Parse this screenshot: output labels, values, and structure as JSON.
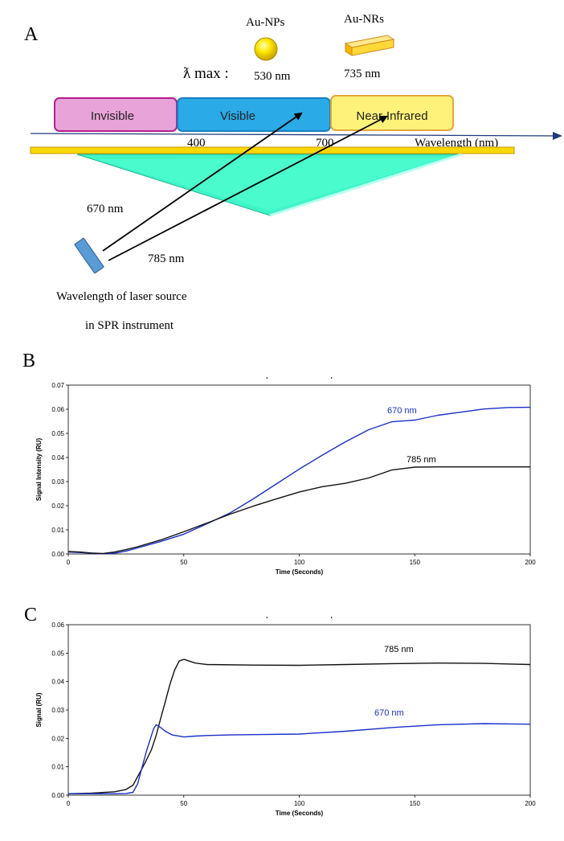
{
  "panel_a": {
    "letter": "A",
    "np_label": "Au-NPs",
    "nr_label": "Au-NRs",
    "lambda_label": "ƛ max :",
    "np_wavelength": "530 nm",
    "nr_wavelength": "735 nm",
    "region_invisible": "Invisible",
    "region_visible": "Visible",
    "region_nir": "Near-Infrared",
    "tick_400": "400",
    "tick_700": "700",
    "axis_label": "Wavelength (nm)",
    "laser_670": "670 nm",
    "laser_785": "785 nm",
    "source_line1": "Wavelength of laser source",
    "source_line2": "in SPR instrument",
    "colors": {
      "invisible_fill": "#e8a3d8",
      "invisible_border": "#b5208f",
      "visible_fill": "#2aaae6",
      "visible_border": "#1a7fc0",
      "nir_fill": "#fff27a",
      "nir_border": "#e6a53a",
      "prism": "#3ff5c8",
      "axis": "#1f3a78"
    }
  },
  "chart_data": [
    {
      "type": "line",
      "panel": "B",
      "xlabel": "Time (Seconds)",
      "ylabel": "Signal Intensity (RU)",
      "xlim": [
        0,
        200
      ],
      "ylim": [
        0,
        0.07
      ],
      "xticks": [
        "0",
        "50",
        "100",
        "150",
        "200"
      ],
      "yticks": [
        "0.00",
        "0.01",
        "0.02",
        "0.03",
        "0.04",
        "0.05",
        "0.06",
        "0.07"
      ],
      "series": [
        {
          "name": "670 nm",
          "color": "#1a2fc8",
          "x": [
            0,
            5,
            10,
            15,
            20,
            25,
            30,
            40,
            50,
            60,
            70,
            80,
            90,
            100,
            110,
            120,
            130,
            140,
            150,
            160,
            170,
            180,
            190,
            200
          ],
          "y": [
            0.0008,
            0.0006,
            0.0003,
            0.0001,
            0.0003,
            0.0012,
            0.0025,
            0.0052,
            0.0082,
            0.0125,
            0.017,
            0.0228,
            0.029,
            0.0352,
            0.041,
            0.0465,
            0.0515,
            0.0548,
            0.0555,
            0.0575,
            0.0588,
            0.0601,
            0.0607,
            0.0608
          ]
        },
        {
          "name": "785 nm",
          "color": "#111111",
          "x": [
            0,
            5,
            10,
            15,
            20,
            25,
            30,
            40,
            50,
            60,
            70,
            80,
            90,
            100,
            110,
            120,
            130,
            140,
            150,
            160,
            170,
            180,
            190,
            200
          ],
          "y": [
            0.001,
            0.0008,
            0.0004,
            0.0002,
            0.0008,
            0.0018,
            0.003,
            0.0058,
            0.0092,
            0.0128,
            0.0165,
            0.0198,
            0.0228,
            0.0257,
            0.0279,
            0.0293,
            0.0315,
            0.0348,
            0.036,
            0.0361,
            0.0361,
            0.0361,
            0.0361,
            0.0361
          ]
        }
      ]
    },
    {
      "type": "line",
      "panel": "C",
      "xlabel": "Time (Seconds)",
      "ylabel": "Signal (RU)",
      "xlim": [
        0,
        200
      ],
      "ylim": [
        0,
        0.06
      ],
      "xticks": [
        "0",
        "50",
        "100",
        "150",
        "200"
      ],
      "yticks": [
        "0.00",
        "0.01",
        "0.02",
        "0.03",
        "0.04",
        "0.05",
        "0.06"
      ],
      "series": [
        {
          "name": "785 nm",
          "color": "#111111",
          "x": [
            0,
            10,
            20,
            25,
            28,
            30,
            33,
            36,
            38,
            40,
            42,
            44,
            46,
            48,
            50,
            55,
            60,
            80,
            100,
            120,
            140,
            160,
            180,
            200
          ],
          "y": [
            0.0005,
            0.0007,
            0.0012,
            0.002,
            0.0035,
            0.0065,
            0.011,
            0.016,
            0.021,
            0.027,
            0.033,
            0.039,
            0.044,
            0.0472,
            0.0478,
            0.0465,
            0.046,
            0.0458,
            0.0457,
            0.046,
            0.0463,
            0.0465,
            0.0464,
            0.046
          ]
        },
        {
          "name": "670 nm",
          "color": "#1a2fc8",
          "x": [
            0,
            10,
            20,
            25,
            28,
            30,
            32,
            34,
            36,
            37,
            38,
            40,
            42,
            45,
            50,
            55,
            60,
            70,
            80,
            100,
            120,
            140,
            160,
            180,
            200
          ],
          "y": [
            0.0005,
            0.0005,
            0.0005,
            0.0006,
            0.001,
            0.004,
            0.01,
            0.016,
            0.021,
            0.0235,
            0.0248,
            0.0238,
            0.0225,
            0.0212,
            0.0205,
            0.0208,
            0.021,
            0.0212,
            0.0213,
            0.0215,
            0.0225,
            0.0238,
            0.0248,
            0.0252,
            0.025
          ]
        }
      ]
    }
  ],
  "panel_b": {
    "letter": "B",
    "label_670": "670 nm",
    "label_785": "785 nm"
  },
  "panel_c": {
    "letter": "C",
    "label_670": "670 nm",
    "label_785": "785 nm"
  }
}
